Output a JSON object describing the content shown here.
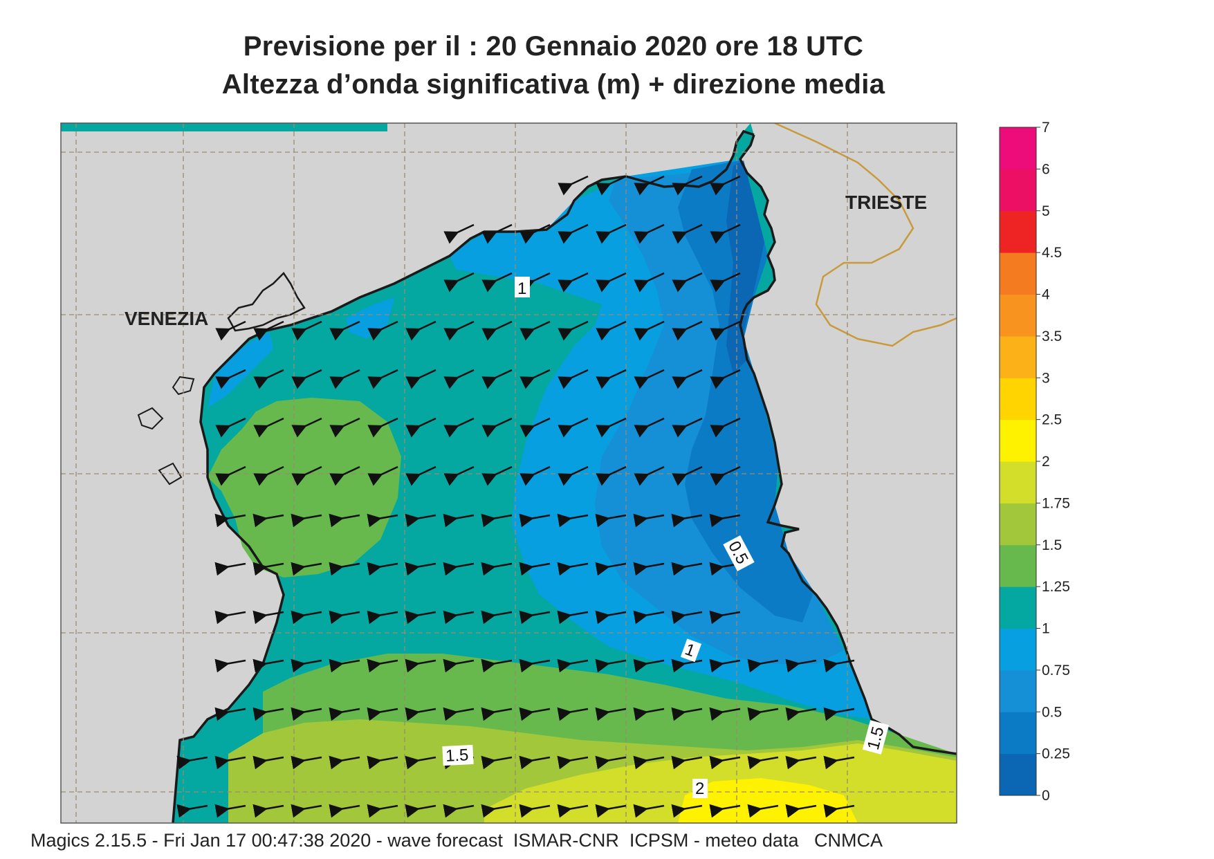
{
  "title": {
    "line1": "Previsione per il  :  20  Gennaio  2020   ore 18 UTC",
    "line2": "Altezza d’onda significativa (m) + direzione media"
  },
  "cities": {
    "venezia": "VENEZIA",
    "trieste": "TRIESTE"
  },
  "contour_labels": [
    "1",
    "0.5",
    "1",
    "1.5",
    "1.5",
    "2"
  ],
  "colorbar": {
    "ticks": [
      "0",
      "0.25",
      "0.5",
      "0.75",
      "1",
      "1.25",
      "1.5",
      "1.75",
      "2",
      "2.5",
      "3",
      "3.5",
      "4",
      "4.5",
      "5",
      "6",
      "7"
    ],
    "colors": [
      "#0b66b4",
      "#0a7bc4",
      "#1590d6",
      "#079fdf",
      "#04a8a0",
      "#67b94e",
      "#a3c73a",
      "#d2de2a",
      "#fff200",
      "#ffd400",
      "#fbb117",
      "#f7931e",
      "#f47b20",
      "#ee2424",
      "#ec1064",
      "#ec0d7b"
    ]
  },
  "colors": {
    "land": "#d3d3d3",
    "coast": "#1a1a1a",
    "border": "#c89a3c",
    "grid": "#9a8a70"
  },
  "footer": "Magics 2.15.5 - Fri Jan 17 00:47:38 2020 - wave forecast  ISMAR-CNR  ICPSM - meteo data   CNMCA"
}
